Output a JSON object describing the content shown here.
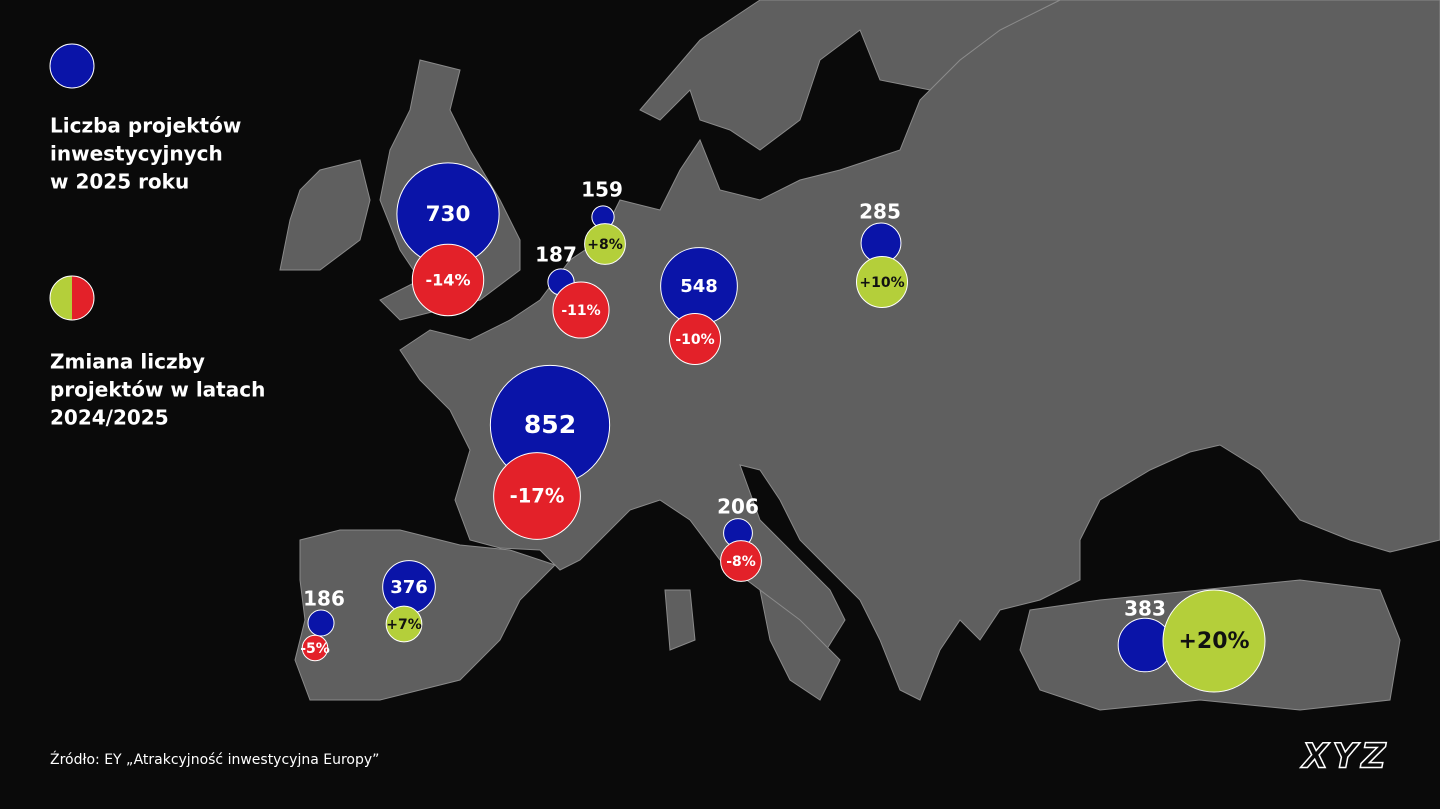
{
  "legend": {
    "projects_title": [
      "Liczba projektów",
      "inwestycyjnych",
      "w 2025 roku"
    ],
    "change_title": [
      "Zmiana liczby",
      "projektów w latach",
      "2024/2025"
    ]
  },
  "colors": {
    "projects": "#0a14a8",
    "increase": "#b4cf3a",
    "decrease": "#e32129"
  },
  "markers": [
    {
      "projects": 730,
      "change": -14,
      "change_label": "-14%"
    },
    {
      "projects": 159,
      "change": 8,
      "change_label": "+8%"
    },
    {
      "projects": 187,
      "change": -11,
      "change_label": "-11%"
    },
    {
      "projects": 548,
      "change": -10,
      "change_label": "-10%"
    },
    {
      "projects": 285,
      "change": 10,
      "change_label": "+10%"
    },
    {
      "projects": 852,
      "change": -17,
      "change_label": "-17%"
    },
    {
      "projects": 206,
      "change": -8,
      "change_label": "-8%"
    },
    {
      "projects": 376,
      "change": 7,
      "change_label": "+7%"
    },
    {
      "projects": 186,
      "change": -5,
      "change_label": "-5%"
    },
    {
      "projects": 383,
      "change": 20,
      "change_label": "+20%"
    }
  ],
  "source": "Źródło: EY „Atrakcyjność inwestycyjna Europy”",
  "logo": "XYZ"
}
